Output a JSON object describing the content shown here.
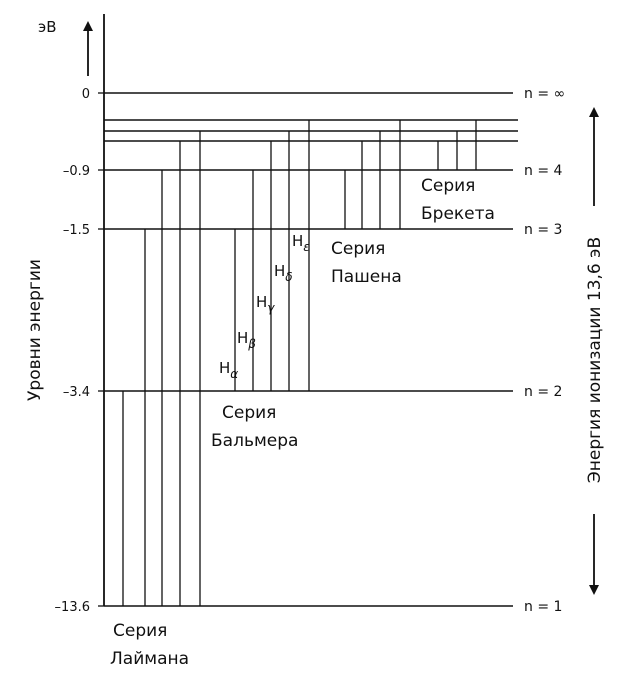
{
  "unit_label": "эВ",
  "y_axis_label": "Уровни энергии",
  "ionization_label": "Энергия ионизации 13,6 эВ",
  "levels": [
    {
      "value": "0",
      "n": "n = ∞"
    },
    {
      "value": "–0.9",
      "n": "n = 4"
    },
    {
      "value": "–1.5",
      "n": "n = 3"
    },
    {
      "value": "–3.4",
      "n": "n = 2"
    },
    {
      "value": "–13.6",
      "n": "n = 1"
    }
  ],
  "series": {
    "lyman": {
      "line1": "Серия",
      "line2": "Лаймана"
    },
    "balmer": {
      "line1": "Серия",
      "line2": "Бальмера"
    },
    "paschen": {
      "line1": "Серия",
      "line2": "Пашена"
    },
    "brackett": {
      "line1": "Серия",
      "line2": "Брекета"
    }
  },
  "balmer_lines": [
    {
      "main": "H",
      "sub": "α"
    },
    {
      "main": "H",
      "sub": "β"
    },
    {
      "main": "H",
      "sub": "γ"
    },
    {
      "main": "H",
      "sub": "δ"
    },
    {
      "main": "H",
      "sub": "ε"
    }
  ]
}
